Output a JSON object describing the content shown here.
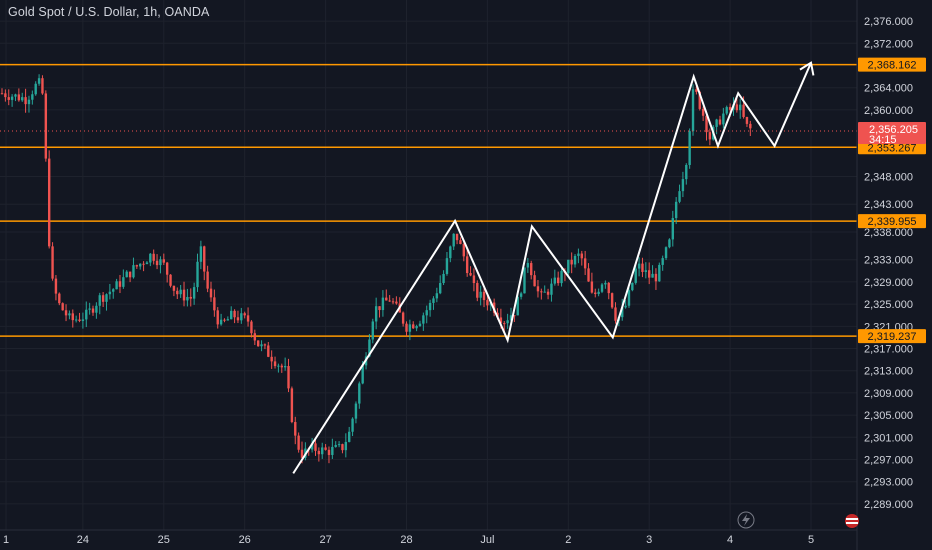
{
  "header": {
    "title": "Gold Spot / U.S. Dollar, 1h, OANDA"
  },
  "colors": {
    "background": "#131722",
    "grid": "#1e222d",
    "up": "#26a69a",
    "down": "#ef5350",
    "level": "#ff9800",
    "path": "#ffffff",
    "text": "#d1d4dc"
  },
  "chart_data": {
    "type": "candlestick",
    "title": "Gold Spot / U.S. Dollar, 1h, OANDA",
    "ylim": [
      2287,
      2378
    ],
    "y_ticks": [
      "2,289.000",
      "2,293.000",
      "2,297.000",
      "2,301.000",
      "2,305.000",
      "2,309.000",
      "2,313.000",
      "2,317.000",
      "2,321.000",
      "2,325.000",
      "2,329.000",
      "2,333.000",
      "2,338.000",
      "2,343.000",
      "2,348.000",
      "2,360.000",
      "2,364.000",
      "2,372.000",
      "2,376.000"
    ],
    "y_tick_values": [
      2289,
      2293,
      2297,
      2301,
      2305,
      2309,
      2313,
      2317,
      2321,
      2325,
      2329,
      2333,
      2338,
      2343,
      2348,
      2360,
      2364,
      2372,
      2376
    ],
    "x_ticks": [
      "1",
      "24",
      "25",
      "26",
      "27",
      "28",
      "Jul",
      "2",
      "3",
      "4",
      "5"
    ],
    "x_tick_days": [
      0.05,
      1.0,
      2.0,
      3.0,
      4.0,
      5.0,
      6.0,
      7.0,
      8.0,
      9.0,
      10.0
    ],
    "levels": [
      {
        "label": "2,368.162",
        "value": 2368.162
      },
      {
        "label": "2,353.267",
        "value": 2353.267
      },
      {
        "label": "2,339.955",
        "value": 2339.955
      },
      {
        "label": "2,319.237",
        "value": 2319.237
      }
    ],
    "current_price": {
      "label": "2,356.205",
      "value": 2356.205,
      "countdown": "34:15"
    },
    "projection_path": [
      [
        3.6,
        2294.5
      ],
      [
        5.6,
        2340
      ],
      [
        6.25,
        2318.5
      ],
      [
        6.55,
        2339
      ],
      [
        7.55,
        2319
      ],
      [
        8.55,
        2366
      ],
      [
        8.85,
        2353.5
      ],
      [
        9.1,
        2363
      ],
      [
        9.55,
        2353.5
      ],
      [
        10.0,
        2368.5
      ]
    ],
    "price_path": [
      [
        0.0,
        2363
      ],
      [
        0.3,
        2362
      ],
      [
        0.45,
        2365
      ],
      [
        0.52,
        2362
      ],
      [
        0.56,
        2341
      ],
      [
        0.62,
        2329
      ],
      [
        0.7,
        2325
      ],
      [
        0.85,
        2322
      ],
      [
        1.05,
        2323
      ],
      [
        1.2,
        2326
      ],
      [
        1.4,
        2328
      ],
      [
        1.6,
        2331
      ],
      [
        1.85,
        2334
      ],
      [
        2.0,
        2332
      ],
      [
        2.15,
        2327
      ],
      [
        2.35,
        2326
      ],
      [
        2.45,
        2335
      ],
      [
        2.55,
        2327
      ],
      [
        2.7,
        2321
      ],
      [
        2.85,
        2323
      ],
      [
        3.05,
        2322
      ],
      [
        3.15,
        2318
      ],
      [
        3.3,
        2316
      ],
      [
        3.5,
        2313
      ],
      [
        3.62,
        2301
      ],
      [
        3.7,
        2298
      ],
      [
        3.85,
        2299
      ],
      [
        4.0,
        2298.5
      ],
      [
        4.2,
        2299
      ],
      [
        4.3,
        2302
      ],
      [
        4.45,
        2313
      ],
      [
        4.6,
        2324
      ],
      [
        4.8,
        2326
      ],
      [
        5.0,
        2321
      ],
      [
        5.15,
        2322
      ],
      [
        5.3,
        2325
      ],
      [
        5.45,
        2330
      ],
      [
        5.6,
        2338
      ],
      [
        5.7,
        2334
      ],
      [
        5.85,
        2327
      ],
      [
        6.05,
        2325
      ],
      [
        6.2,
        2322
      ],
      [
        6.35,
        2324
      ],
      [
        6.5,
        2333
      ],
      [
        6.65,
        2326
      ],
      [
        6.85,
        2329
      ],
      [
        7.0,
        2332
      ],
      [
        7.15,
        2334
      ],
      [
        7.3,
        2326
      ],
      [
        7.45,
        2330
      ],
      [
        7.6,
        2322
      ],
      [
        7.72,
        2325
      ],
      [
        7.85,
        2332
      ],
      [
        8.0,
        2330
      ],
      [
        8.1,
        2330
      ],
      [
        8.25,
        2336
      ],
      [
        8.35,
        2345
      ],
      [
        8.45,
        2350
      ],
      [
        8.55,
        2364
      ],
      [
        8.65,
        2360
      ],
      [
        8.75,
        2355
      ],
      [
        8.9,
        2359
      ],
      [
        9.1,
        2361
      ],
      [
        9.2,
        2357
      ],
      [
        9.28,
        2356.2
      ]
    ]
  }
}
